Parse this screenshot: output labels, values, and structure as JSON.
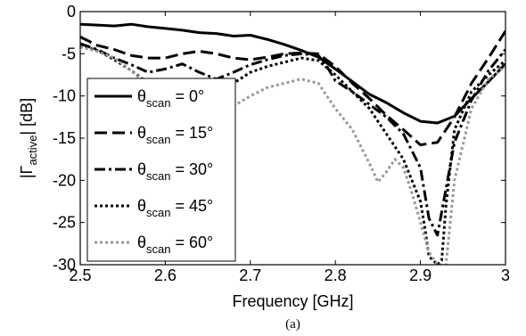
{
  "chart_data": {
    "type": "line",
    "xlabel": "Frequency [GHz]",
    "ylabel_parts": {
      "pre": "|Γ",
      "sub": "active",
      "post": "| [dB]"
    },
    "caption": "(a)",
    "xlim": [
      2.5,
      3.0
    ],
    "ylim": [
      -30,
      0
    ],
    "x_ticks": [
      2.5,
      2.6,
      2.7,
      2.8,
      2.9,
      3.0
    ],
    "x_tick_labels": [
      "2.5",
      "2.6",
      "2.7",
      "2.8",
      "2.9",
      "3"
    ],
    "y_ticks": [
      0,
      -5,
      -10,
      -15,
      -20,
      -25,
      -30
    ],
    "y_tick_labels": [
      "0",
      "-5",
      "-10",
      "-15",
      "-20",
      "-25",
      "-30"
    ],
    "grid": false,
    "legend_position": "left",
    "series": [
      {
        "legend": {
          "theta": "θ",
          "sub": "scan",
          "rest": " = 0°"
        },
        "color": "#000000",
        "dash": "solid",
        "x": [
          2.5,
          2.52,
          2.54,
          2.56,
          2.58,
          2.6,
          2.62,
          2.64,
          2.66,
          2.68,
          2.7,
          2.72,
          2.74,
          2.76,
          2.78,
          2.8,
          2.82,
          2.84,
          2.86,
          2.88,
          2.9,
          2.92,
          2.94,
          2.96,
          2.98,
          3.0
        ],
        "y": [
          -1.5,
          -1.6,
          -1.7,
          -1.5,
          -1.8,
          -2.0,
          -2.2,
          -2.5,
          -2.6,
          -2.9,
          -2.8,
          -3.3,
          -3.9,
          -4.6,
          -5.4,
          -6.8,
          -8.3,
          -9.8,
          -10.8,
          -12.0,
          -13.0,
          -13.2,
          -12.4,
          -10.3,
          -8.3,
          -6.2
        ]
      },
      {
        "legend": {
          "theta": "θ",
          "sub": "scan",
          "rest": " = 15°"
        },
        "color": "#000000",
        "dash": "dash",
        "x": [
          2.5,
          2.52,
          2.54,
          2.56,
          2.58,
          2.6,
          2.62,
          2.64,
          2.66,
          2.68,
          2.7,
          2.72,
          2.74,
          2.76,
          2.78,
          2.8,
          2.82,
          2.84,
          2.86,
          2.88,
          2.9,
          2.92,
          2.94,
          2.96,
          2.98,
          3.0
        ],
        "y": [
          -3.0,
          -4.0,
          -4.5,
          -5.2,
          -5.5,
          -5.5,
          -5.0,
          -4.7,
          -5.0,
          -5.5,
          -5.7,
          -5.4,
          -5.0,
          -4.9,
          -5.0,
          -6.5,
          -8.5,
          -10.3,
          -12.3,
          -14.0,
          -15.8,
          -15.5,
          -12.5,
          -8.5,
          -5.5,
          -2.3
        ]
      },
      {
        "legend": {
          "theta": "θ",
          "sub": "scan",
          "rest": " = 30°"
        },
        "color": "#000000",
        "dash": "dashdot",
        "x": [
          2.5,
          2.52,
          2.54,
          2.56,
          2.58,
          2.6,
          2.62,
          2.64,
          2.66,
          2.68,
          2.7,
          2.72,
          2.74,
          2.76,
          2.78,
          2.79,
          2.8,
          2.82,
          2.84,
          2.86,
          2.88,
          2.9,
          2.91,
          2.92,
          2.93,
          2.94,
          2.96,
          2.98,
          3.0
        ],
        "y": [
          -3.8,
          -4.5,
          -5.5,
          -6.3,
          -7.2,
          -6.8,
          -6.2,
          -7.2,
          -8.0,
          -7.2,
          -6.3,
          -5.7,
          -5.2,
          -5.0,
          -5.2,
          -6.5,
          -8.2,
          -9.5,
          -11.0,
          -12.5,
          -14.5,
          -18.5,
          -24.5,
          -26.5,
          -21.0,
          -15.5,
          -10.5,
          -7.0,
          -4.5
        ]
      },
      {
        "legend": {
          "theta": "θ",
          "sub": "scan",
          "rest": " = 45°"
        },
        "color": "#000000",
        "dash": "dot",
        "x": [
          2.5,
          2.52,
          2.54,
          2.56,
          2.58,
          2.6,
          2.62,
          2.64,
          2.66,
          2.68,
          2.7,
          2.72,
          2.74,
          2.76,
          2.78,
          2.8,
          2.82,
          2.84,
          2.86,
          2.88,
          2.9,
          2.905,
          2.91,
          2.92,
          2.925,
          2.93,
          2.94,
          2.96,
          2.98,
          3.0
        ],
        "y": [
          -4.0,
          -4.6,
          -5.7,
          -7.0,
          -8.5,
          -9.8,
          -11.0,
          -11.5,
          -10.0,
          -8.5,
          -7.2,
          -6.5,
          -6.0,
          -5.5,
          -5.8,
          -7.5,
          -9.5,
          -11.5,
          -14.5,
          -17.5,
          -22.5,
          -25.5,
          -29.0,
          -30.0,
          -29.5,
          -23.0,
          -14.0,
          -9.5,
          -7.5,
          -5.8
        ]
      },
      {
        "legend": {
          "theta": "θ",
          "sub": "scan",
          "rest": " = 60°"
        },
        "color": "#999999",
        "dash": "dot",
        "x": [
          2.5,
          2.52,
          2.54,
          2.56,
          2.58,
          2.6,
          2.62,
          2.64,
          2.66,
          2.68,
          2.7,
          2.72,
          2.74,
          2.76,
          2.78,
          2.8,
          2.82,
          2.84,
          2.85,
          2.86,
          2.87,
          2.88,
          2.89,
          2.9,
          2.91,
          2.92,
          2.93,
          2.94,
          2.96,
          2.98,
          3.0
        ],
        "y": [
          -4.2,
          -4.7,
          -5.5,
          -7.0,
          -8.8,
          -10.2,
          -11.8,
          -12.5,
          -12.3,
          -11.2,
          -10.0,
          -9.0,
          -8.5,
          -8.0,
          -8.5,
          -11.5,
          -14.0,
          -18.0,
          -20.2,
          -19.0,
          -17.5,
          -18.5,
          -21.5,
          -25.0,
          -28.5,
          -30.0,
          -30.0,
          -20.0,
          -11.5,
          -8.0,
          -6.5
        ]
      }
    ]
  }
}
